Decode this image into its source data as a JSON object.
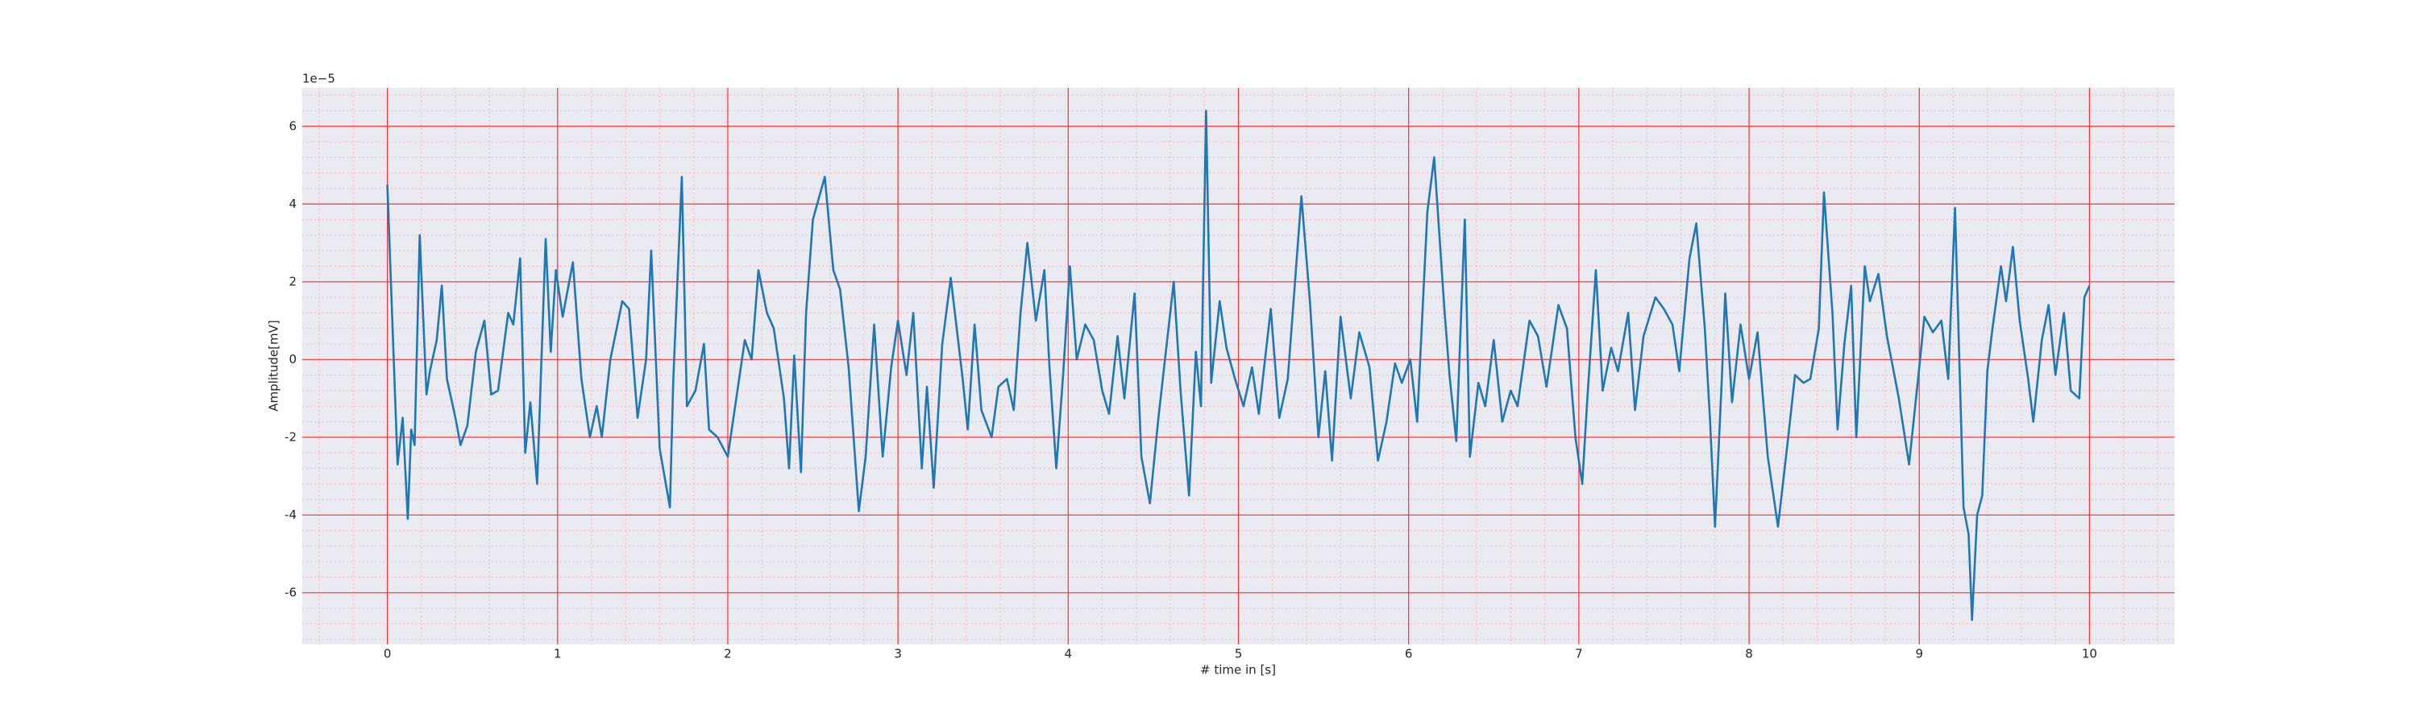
{
  "chart_data": {
    "type": "line",
    "xlabel": "# time in [s]",
    "ylabel": "Amplitude[mV]",
    "offset_label": "1e−5",
    "color": "#1f77b4",
    "grid": true,
    "xlim": [
      -0.5,
      10.5
    ],
    "ylim": [
      -7.33,
      6.99
    ],
    "xticks": [
      0,
      1,
      2,
      3,
      4,
      5,
      6,
      7,
      8,
      9,
      10
    ],
    "yticks": [
      -6,
      -4,
      -2,
      0,
      2,
      4,
      6
    ],
    "x": [
      0,
      0.06,
      0.09,
      0.12,
      0.14,
      0.16,
      0.19,
      0.23,
      0.25,
      0.29,
      0.32,
      0.35,
      0.4,
      0.43,
      0.47,
      0.52,
      0.57,
      0.61,
      0.65,
      0.71,
      0.74,
      0.78,
      0.81,
      0.84,
      0.88,
      0.93,
      0.96,
      0.99,
      1.03,
      1.09,
      1.14,
      1.19,
      1.23,
      1.26,
      1.31,
      1.38,
      1.42,
      1.47,
      1.52,
      1.55,
      1.6,
      1.66,
      1.68,
      1.73,
      1.76,
      1.81,
      1.86,
      1.89,
      1.94,
      2.0,
      2.05,
      2.1,
      2.14,
      2.18,
      2.23,
      2.27,
      2.33,
      2.36,
      2.39,
      2.43,
      2.46,
      2.5,
      2.57,
      2.62,
      2.66,
      2.71,
      2.77,
      2.81,
      2.86,
      2.91,
      2.96,
      3.0,
      3.05,
      3.09,
      3.14,
      3.17,
      3.21,
      3.26,
      3.31,
      3.38,
      3.41,
      3.45,
      3.49,
      3.55,
      3.59,
      3.64,
      3.68,
      3.72,
      3.76,
      3.81,
      3.86,
      3.89,
      3.93,
      3.97,
      4.01,
      4.05,
      4.1,
      4.15,
      4.2,
      4.24,
      4.29,
      4.33,
      4.39,
      4.43,
      4.48,
      4.53,
      4.62,
      4.66,
      4.71,
      4.75,
      4.78,
      4.81,
      4.84,
      4.89,
      4.93,
      4.98,
      5.03,
      5.08,
      5.12,
      5.19,
      5.24,
      5.29,
      5.37,
      5.42,
      5.47,
      5.51,
      5.55,
      5.6,
      5.66,
      5.71,
      5.77,
      5.82,
      5.87,
      5.92,
      5.96,
      6.01,
      6.05,
      6.11,
      6.15,
      6.21,
      6.24,
      6.28,
      6.33,
      6.36,
      6.41,
      6.45,
      6.5,
      6.55,
      6.6,
      6.64,
      6.71,
      6.76,
      6.81,
      6.88,
      6.93,
      6.98,
      7.02,
      7.05,
      7.1,
      7.14,
      7.19,
      7.23,
      7.29,
      7.33,
      7.38,
      7.45,
      7.5,
      7.55,
      7.59,
      7.65,
      7.69,
      7.74,
      7.77,
      7.8,
      7.84,
      7.86,
      7.9,
      7.95,
      8.0,
      8.05,
      8.11,
      8.17,
      8.23,
      8.27,
      8.32,
      8.36,
      8.41,
      8.44,
      8.49,
      8.52,
      8.56,
      8.6,
      8.63,
      8.68,
      8.71,
      8.76,
      8.81,
      8.88,
      8.94,
      9.0,
      9.03,
      9.08,
      9.13,
      9.17,
      9.21,
      9.26,
      9.29,
      9.31,
      9.34,
      9.37,
      9.4,
      9.43,
      9.48,
      9.51,
      9.55,
      9.59,
      9.64,
      9.67,
      9.72,
      9.76,
      9.8,
      9.85,
      9.89,
      9.94,
      9.97,
      10.0
    ],
    "values": [
      4.5,
      -2.7,
      -1.5,
      -4.1,
      -1.8,
      -2.2,
      3.2,
      -0.9,
      -0.3,
      0.5,
      1.9,
      -0.5,
      -1.5,
      -2.2,
      -1.7,
      0.2,
      1.0,
      -0.9,
      -0.8,
      1.2,
      0.9,
      2.6,
      -2.4,
      -1.1,
      -3.2,
      3.1,
      0.2,
      2.3,
      1.1,
      2.5,
      -0.5,
      -2.0,
      -1.2,
      -2.0,
      0.0,
      1.5,
      1.3,
      -1.5,
      0.0,
      2.8,
      -2.3,
      -3.8,
      -0.5,
      4.7,
      -1.2,
      -0.8,
      0.4,
      -1.8,
      -2.0,
      -2.5,
      -1.0,
      0.5,
      0.0,
      2.3,
      1.2,
      0.8,
      -1.0,
      -2.8,
      0.1,
      -2.9,
      1.2,
      3.6,
      4.7,
      2.3,
      1.8,
      -0.2,
      -3.9,
      -2.5,
      0.9,
      -2.5,
      -0.2,
      1.0,
      -0.4,
      1.2,
      -2.8,
      -0.7,
      -3.3,
      0.4,
      2.1,
      -0.5,
      -1.8,
      0.9,
      -1.3,
      -2.0,
      -0.7,
      -0.5,
      -1.3,
      1.2,
      3.0,
      1.0,
      2.3,
      -0.2,
      -2.8,
      -0.4,
      2.4,
      0.0,
      0.9,
      0.5,
      -0.8,
      -1.4,
      0.6,
      -1.0,
      1.7,
      -2.5,
      -3.7,
      -1.5,
      2.0,
      -0.8,
      -3.5,
      0.2,
      -1.2,
      6.4,
      -0.6,
      1.5,
      0.3,
      -0.5,
      -1.2,
      -0.2,
      -1.4,
      1.3,
      -1.5,
      -0.5,
      4.2,
      1.5,
      -2.0,
      -0.3,
      -2.6,
      1.1,
      -1.0,
      0.7,
      -0.2,
      -2.6,
      -1.6,
      -0.1,
      -0.6,
      0.0,
      -1.6,
      3.8,
      5.2,
      1.3,
      -0.4,
      -2.1,
      3.6,
      -2.5,
      -0.6,
      -1.2,
      0.5,
      -1.6,
      -0.8,
      -1.2,
      1.0,
      0.6,
      -0.7,
      1.4,
      0.8,
      -2.0,
      -3.2,
      -1.0,
      2.3,
      -0.8,
      0.3,
      -0.3,
      1.2,
      -1.3,
      0.6,
      1.6,
      1.3,
      0.9,
      -0.3,
      2.6,
      3.5,
      0.8,
      -1.5,
      -4.3,
      -0.5,
      1.7,
      -1.1,
      0.9,
      -0.5,
      0.7,
      -2.5,
      -4.3,
      -2.0,
      -0.4,
      -0.6,
      -0.5,
      0.8,
      4.3,
      1.2,
      -1.8,
      0.4,
      1.9,
      -2.0,
      2.4,
      1.5,
      2.2,
      0.6,
      -1.0,
      -2.7,
      -0.2,
      1.1,
      0.7,
      1.0,
      -0.5,
      3.9,
      -3.8,
      -4.5,
      -6.7,
      -4.0,
      -3.5,
      -0.3,
      0.8,
      2.4,
      1.5,
      2.9,
      1.0,
      -0.5,
      -1.6,
      0.5,
      1.4,
      -0.4,
      1.2,
      -0.8,
      -1.0,
      1.6,
      1.9
    ]
  }
}
